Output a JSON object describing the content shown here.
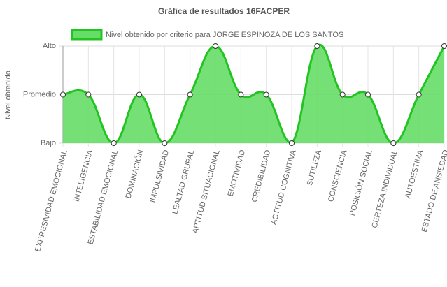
{
  "chart_data": {
    "type": "area",
    "title": "Gráfica de resultados 16FACPER",
    "y_label": "Nivel obtenido",
    "categories": [
      "EXPRESIVIDAD EMOCIONAL",
      "INTELIGENCIA",
      "ESTABILIDAD EMOCIONAL",
      "DOMINACIÓN",
      "IMPULSIVIDAD",
      "LEALTAD GRUPAL",
      "APTITUD SITUACIONAL",
      "EMOTIVIDAD",
      "CREDIBILIDAD",
      "ACTITUD COGNITIVA",
      "SUTILEZA",
      "CONSCIENCIA",
      "POSICIÓN SOCIAL",
      "CERTEZA INDIVIDUAL",
      "AUTOESTIMA",
      "ESTADO DE ANSIEDAD"
    ],
    "series": [
      {
        "name": "Nivel obtenido por criterio para JORGE ESPINOZA DE LOS SANTOS",
        "color": "#22c322",
        "fill": "#66dd66",
        "values": [
          2,
          2,
          1,
          2,
          1,
          2,
          3,
          2,
          2,
          1,
          3,
          2,
          2,
          1,
          2,
          3
        ]
      }
    ],
    "ylim": [
      1,
      3
    ],
    "yticks": [
      {
        "value": 1,
        "label": "Bajo"
      },
      {
        "value": 2,
        "label": "Promedio"
      },
      {
        "value": 3,
        "label": "Alto"
      }
    ],
    "grid": true
  }
}
